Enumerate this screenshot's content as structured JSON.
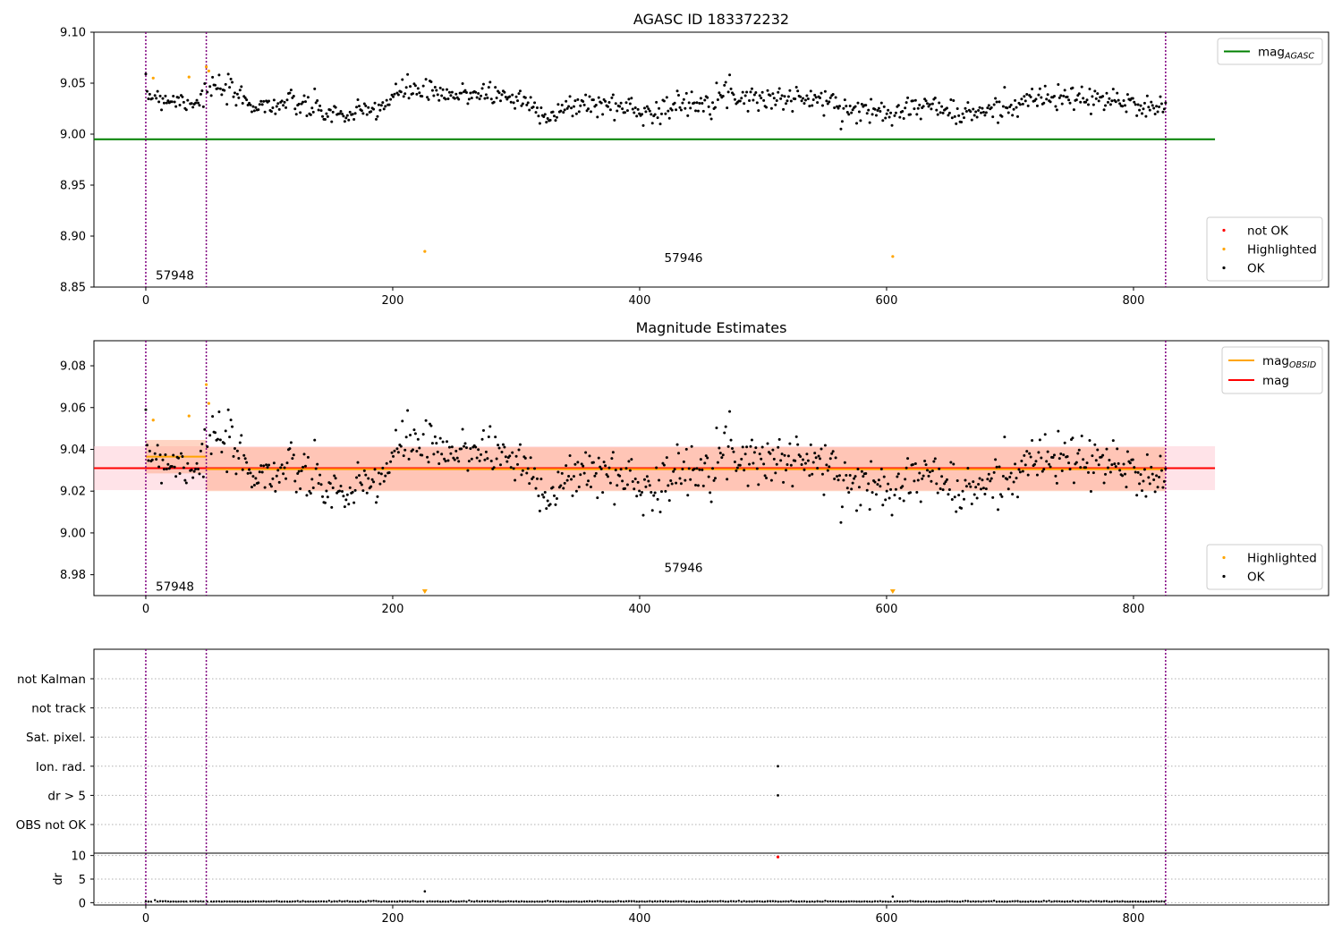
{
  "figure": {
    "panel1_title": "AGASC ID 183372232",
    "panel2_title": "Magnitude Estimates"
  },
  "colors": {
    "ok": "#000000",
    "highlighted": "#ffa500",
    "not_ok": "#ff0000",
    "agasc_line": "#008000",
    "mag_line": "#ff0000",
    "mag_obsid_line": "#ffa500",
    "boundary_line": "#800080",
    "band_outer": "#ffc0cb",
    "band_inner": "#ffa07a",
    "grid": "#b0b0b0"
  },
  "chart_data": [
    {
      "type": "scatter",
      "title": "AGASC ID 183372232",
      "xlim": [
        -42,
        958
      ],
      "ylim": [
        8.85,
        9.1
      ],
      "xticks": [
        0,
        200,
        400,
        600,
        800
      ],
      "yticks": [
        8.85,
        8.9,
        8.95,
        9.0,
        9.05,
        9.1
      ],
      "ytick_labels": [
        "8.85",
        "8.90",
        "8.95",
        "9.00",
        "9.05",
        "9.10"
      ],
      "obsid_boundaries": [
        0,
        49,
        826
      ],
      "obsid_labels": [
        {
          "text": "57948",
          "x": 8,
          "y": 8.862
        },
        {
          "text": "57946",
          "x": 420,
          "y": 8.879
        }
      ],
      "mag_agasc": {
        "value": 8.995,
        "x_range": [
          -42,
          866
        ]
      },
      "legend_upper": {
        "position": "upper right",
        "entries": [
          {
            "label": "mag",
            "sub": "AGASC",
            "kind": "line",
            "color": "#008000"
          }
        ]
      },
      "legend_lower": {
        "position": "lower right",
        "entries": [
          {
            "label": "not OK",
            "kind": "point",
            "color": "#ff0000"
          },
          {
            "label": "Highlighted",
            "kind": "point",
            "color": "#ffa500"
          },
          {
            "label": "OK",
            "kind": "point",
            "color": "#000000"
          }
        ]
      },
      "highlighted_points": [
        [
          6,
          9.055
        ],
        [
          35,
          9.056
        ],
        [
          49,
          9.066
        ],
        [
          51,
          9.062
        ],
        [
          226,
          8.885
        ],
        [
          605,
          8.88
        ]
      ],
      "ok_series": {
        "x_range": [
          0,
          826
        ],
        "mean": 9.031,
        "anchors": [
          [
            0,
            9.04
          ],
          [
            20,
            9.034
          ],
          [
            40,
            9.032
          ],
          [
            55,
            9.046
          ],
          [
            70,
            9.04
          ],
          [
            90,
            9.028
          ],
          [
            120,
            9.03
          ],
          [
            150,
            9.02
          ],
          [
            170,
            9.018
          ],
          [
            195,
            9.03
          ],
          [
            210,
            9.045
          ],
          [
            225,
            9.042
          ],
          [
            245,
            9.036
          ],
          [
            270,
            9.042
          ],
          [
            300,
            9.035
          ],
          [
            330,
            9.018
          ],
          [
            350,
            9.03
          ],
          [
            380,
            9.028
          ],
          [
            410,
            9.022
          ],
          [
            440,
            9.03
          ],
          [
            470,
            9.04
          ],
          [
            500,
            9.035
          ],
          [
            540,
            9.035
          ],
          [
            580,
            9.022
          ],
          [
            610,
            9.025
          ],
          [
            640,
            9.028
          ],
          [
            660,
            9.018
          ],
          [
            690,
            9.025
          ],
          [
            720,
            9.035
          ],
          [
            760,
            9.035
          ],
          [
            800,
            9.03
          ],
          [
            826,
            9.025
          ]
        ],
        "spread": 0.011,
        "n": 780
      }
    },
    {
      "type": "scatter",
      "title": "Magnitude Estimates",
      "xlim": [
        -42,
        958
      ],
      "ylim": [
        8.97,
        9.092
      ],
      "xticks": [
        0,
        200,
        400,
        600,
        800
      ],
      "yticks": [
        8.98,
        9.0,
        9.02,
        9.04,
        9.06,
        9.08
      ],
      "ytick_labels": [
        "8.98",
        "9.00",
        "9.02",
        "9.04",
        "9.06",
        "9.08"
      ],
      "obsid_labels": [
        {
          "text": "57948",
          "x": 8,
          "y": 8.9745
        },
        {
          "text": "57946",
          "x": 420,
          "y": 8.9835
        }
      ],
      "mag": {
        "value": 9.031,
        "band_outer": [
          9.0205,
          9.0415
        ],
        "x_range": [
          -42,
          866
        ]
      },
      "mag_obsid": [
        {
          "value": 9.0365,
          "band": [
            9.0285,
            9.0445
          ],
          "x_range": [
            0,
            49
          ]
        },
        {
          "value": 9.0305,
          "band": [
            9.02,
            9.041
          ],
          "x_range": [
            49,
            826
          ]
        }
      ],
      "out_of_range_markers": [
        226,
        605
      ],
      "legend_upper": {
        "position": "upper right",
        "entries": [
          {
            "label": "mag",
            "sub": "OBSID",
            "kind": "line",
            "color": "#ffa500"
          },
          {
            "label": "mag",
            "sub": "",
            "kind": "line",
            "color": "#ff0000"
          }
        ]
      },
      "legend_lower": {
        "position": "lower right",
        "entries": [
          {
            "label": "Highlighted",
            "kind": "point",
            "color": "#ffa500"
          },
          {
            "label": "OK",
            "kind": "point",
            "color": "#000000"
          }
        ]
      },
      "highlighted_points": [
        [
          6,
          9.054
        ],
        [
          35,
          9.056
        ],
        [
          49,
          9.071
        ],
        [
          51,
          9.062
        ]
      ]
    },
    {
      "type": "scatter",
      "title": "",
      "xlim": [
        -42,
        958
      ],
      "flag_categories": [
        "not Kalman",
        "not track",
        "Sat. pixel.",
        "Ion. rad.",
        "dr > 5",
        "OBS not OK"
      ],
      "flag_points": [
        {
          "category": "Ion. rad.",
          "x": 512
        },
        {
          "category": "dr > 5",
          "x": 512
        }
      ],
      "xticks": [
        0,
        200,
        400,
        600,
        800
      ]
    },
    {
      "type": "scatter",
      "title": "",
      "ylabel": "dr",
      "xlim": [
        -42,
        958
      ],
      "ylim": [
        -0.5,
        10.5
      ],
      "yticks": [
        0,
        5,
        10
      ],
      "ytick_labels": [
        "0",
        "5",
        "10"
      ],
      "xticks": [
        0,
        200,
        400,
        600,
        800
      ],
      "xtick_labels": [
        "0",
        "200",
        "400",
        "600",
        "800"
      ],
      "dr_baseline": 0.2,
      "dr_outliers": [
        [
          226,
          2.4
        ],
        [
          605,
          1.3
        ]
      ],
      "dr_not_ok": [
        [
          512,
          9.7
        ]
      ]
    }
  ]
}
